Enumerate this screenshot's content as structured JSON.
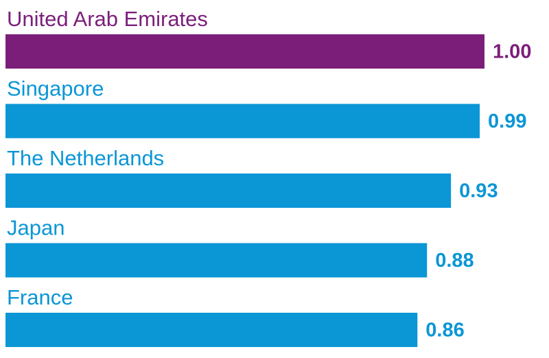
{
  "chart_data": {
    "type": "bar",
    "orientation": "horizontal",
    "categories": [
      "United Arab Emirates",
      "Singapore",
      "The Netherlands",
      "Japan",
      "France"
    ],
    "values": [
      1.0,
      0.99,
      0.93,
      0.88,
      0.86
    ],
    "value_labels": [
      "1.00",
      "0.99",
      "0.93",
      "0.88",
      "0.86"
    ],
    "colors": [
      "#7b1e7a",
      "#0b96d6",
      "#0b96d6",
      "#0b96d6",
      "#0b96d6"
    ]
  }
}
